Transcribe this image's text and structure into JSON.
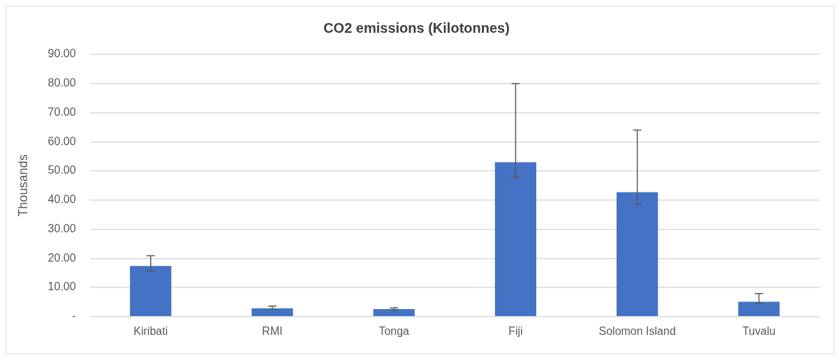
{
  "chart_data": {
    "type": "bar",
    "title": "CO2 emissions (Kilotonnes)",
    "ylabel": "Thousands",
    "categories": [
      "Kiribati",
      "RMI",
      "Tonga",
      "Fiji",
      "Solomon Island",
      "Tuvalu"
    ],
    "values": [
      17.4,
      2.8,
      2.6,
      53.0,
      42.7,
      5.1
    ],
    "errors": [
      [
        15.6,
        20.9
      ],
      [
        2.6,
        3.6
      ],
      [
        2.2,
        3.0
      ],
      [
        47.8,
        80.0
      ],
      [
        38.5,
        64.0
      ],
      [
        4.6,
        7.9
      ]
    ],
    "color": "#4472c4",
    "ylim": [
      0,
      90
    ],
    "yticks": [
      {
        "value": 0,
        "label": "-"
      },
      {
        "value": 10,
        "label": "10.00"
      },
      {
        "value": 20,
        "label": "20.00"
      },
      {
        "value": 30,
        "label": "30.00"
      },
      {
        "value": 40,
        "label": "40.00"
      },
      {
        "value": 50,
        "label": "50.00"
      },
      {
        "value": 60,
        "label": "60.00"
      },
      {
        "value": 70,
        "label": "70.00"
      },
      {
        "value": 80,
        "label": "80.00"
      },
      {
        "value": 90,
        "label": "90.00"
      }
    ],
    "grid": "y",
    "legend": false
  }
}
